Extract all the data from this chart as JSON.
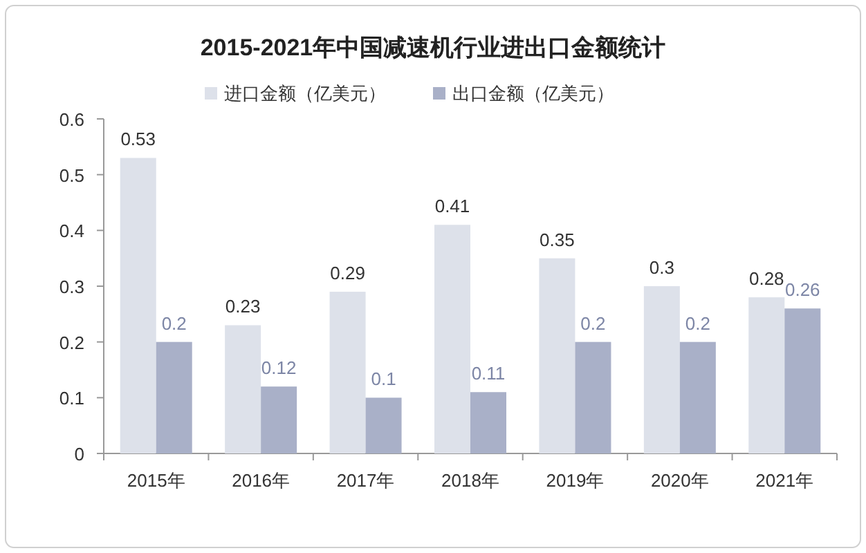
{
  "chart_data": {
    "type": "bar",
    "title": "2015-2021年中国减速机行业进出口金额统计",
    "categories": [
      "2015年",
      "2016年",
      "2017年",
      "2018年",
      "2019年",
      "2020年",
      "2021年"
    ],
    "series": [
      {
        "name": "进口金额（亿美元）",
        "color": "#dde1ea",
        "values": [
          0.53,
          0.23,
          0.29,
          0.41,
          0.35,
          0.3,
          0.28
        ]
      },
      {
        "name": "出口金额（亿美元）",
        "color": "#a9b0c8",
        "values": [
          0.2,
          0.12,
          0.1,
          0.11,
          0.2,
          0.2,
          0.26
        ]
      }
    ],
    "ylim": [
      0,
      0.6
    ],
    "yticks": [
      0,
      0.1,
      0.2,
      0.3,
      0.4,
      0.5,
      0.6
    ],
    "data_labels": true,
    "legend": "top",
    "grid": false
  }
}
